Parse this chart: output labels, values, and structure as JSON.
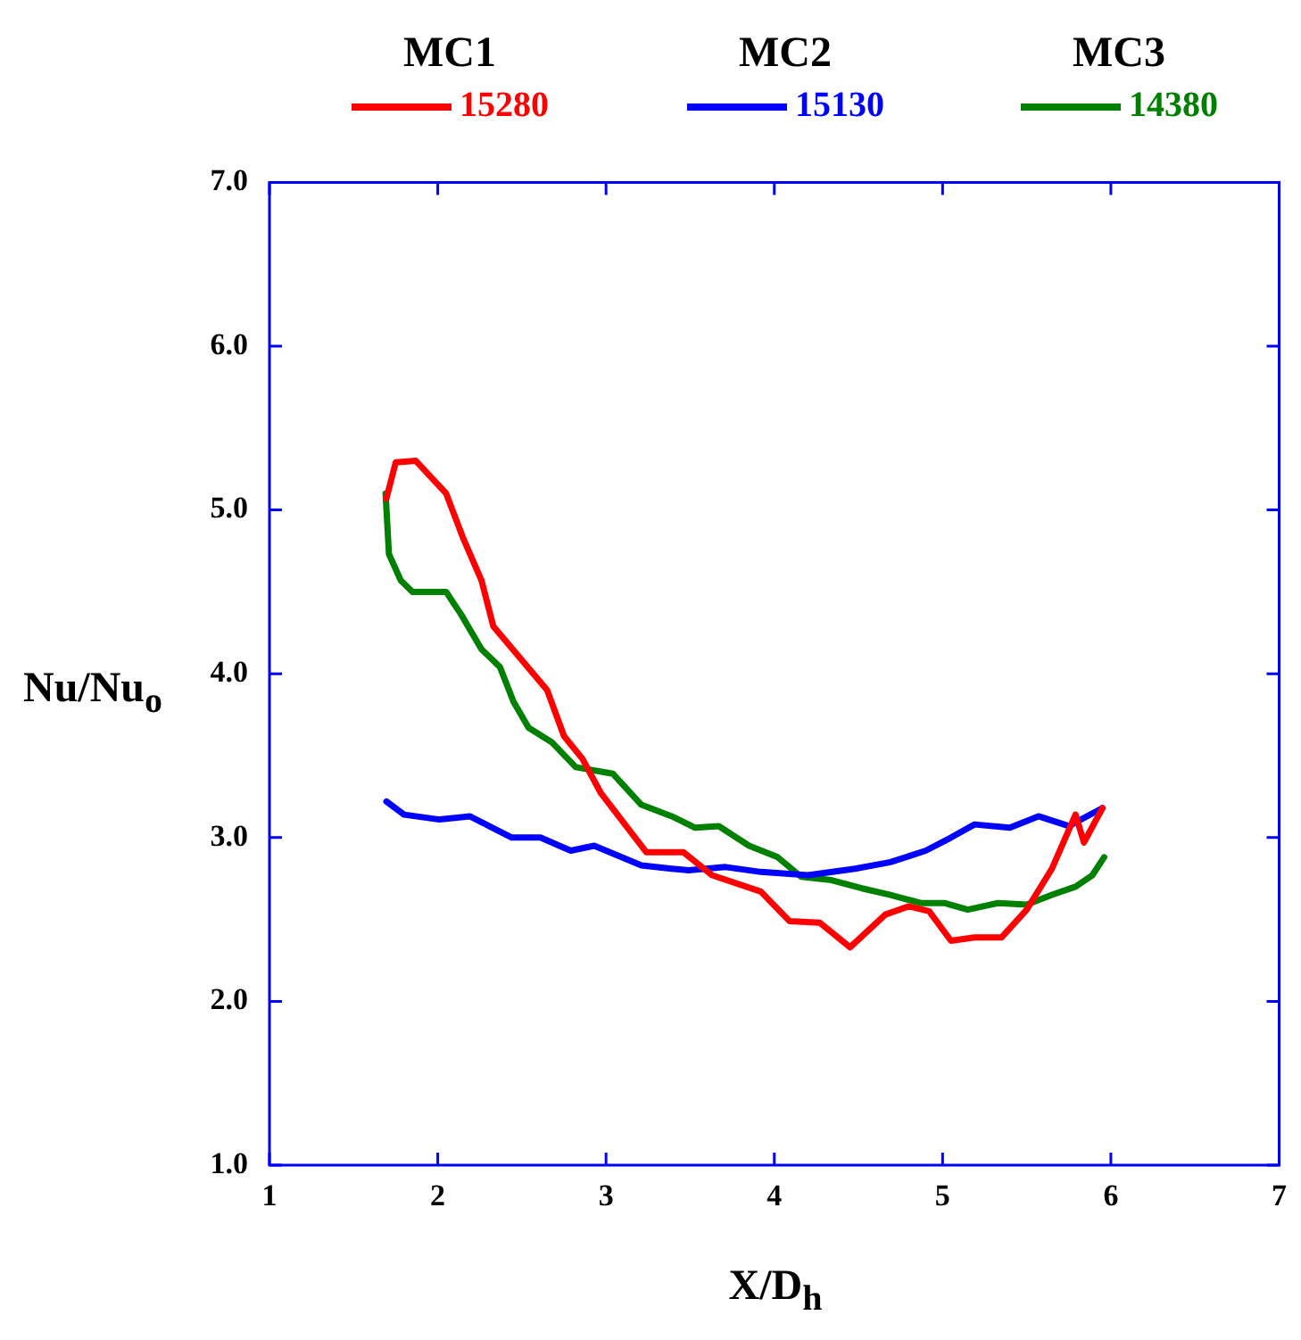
{
  "chart_data": {
    "type": "line",
    "xlabel": "X/D$_{h}$",
    "ylabel": "Nu/Nu$_{o}$",
    "annotations": [
      "MC1",
      "MC2",
      "MC3"
    ],
    "xlim": [
      1,
      7
    ],
    "ylim": [
      1,
      7
    ],
    "xticks": [
      1,
      2,
      3,
      4,
      5,
      6,
      7
    ],
    "yticks": [
      {
        "value": 1,
        "label": "1.0"
      },
      {
        "value": 2,
        "label": "2.0"
      },
      {
        "value": 3,
        "label": "3.0"
      },
      {
        "value": 4,
        "label": "4.0"
      },
      {
        "value": 5,
        "label": "5.0"
      },
      {
        "value": 6,
        "label": "6.0"
      },
      {
        "value": 7,
        "label": "7.0"
      }
    ],
    "grid": false,
    "legend": "top",
    "marker": "none",
    "line_style": "solid",
    "series": [
      {
        "name": "15280",
        "color": "#ff0000",
        "x": [
          1.695,
          1.75,
          1.87,
          2.05,
          2.15,
          2.26,
          2.33,
          2.47,
          2.65,
          2.75,
          2.86,
          2.97,
          3.24,
          3.46,
          3.63,
          3.92,
          4.09,
          4.27,
          4.45,
          4.66,
          4.8,
          4.92,
          5.05,
          5.19,
          5.35,
          5.5,
          5.65,
          5.79,
          5.84,
          5.95
        ],
        "values": [
          5.07,
          5.29,
          5.3,
          5.1,
          4.83,
          4.57,
          4.29,
          4.12,
          3.9,
          3.62,
          3.48,
          3.27,
          2.91,
          2.91,
          2.77,
          2.67,
          2.49,
          2.48,
          2.33,
          2.53,
          2.58,
          2.55,
          2.37,
          2.39,
          2.39,
          2.56,
          2.81,
          3.14,
          2.97,
          3.18
        ]
      },
      {
        "name": "15130",
        "color": "#0000ff",
        "x": [
          1.695,
          1.8,
          2.01,
          2.19,
          2.44,
          2.61,
          2.79,
          2.93,
          3.21,
          3.39,
          3.49,
          3.71,
          3.92,
          4.2,
          4.48,
          4.69,
          4.9,
          5.05,
          5.19,
          5.4,
          5.57,
          5.75,
          5.95
        ],
        "values": [
          3.22,
          3.14,
          3.11,
          3.13,
          3.0,
          3.0,
          2.92,
          2.95,
          2.83,
          2.81,
          2.8,
          2.82,
          2.79,
          2.77,
          2.81,
          2.85,
          2.92,
          3.0,
          3.08,
          3.06,
          3.13,
          3.07,
          3.18
        ]
      },
      {
        "name": "14380",
        "color": "#008000",
        "x": [
          1.69,
          1.71,
          1.78,
          1.85,
          2.05,
          2.14,
          2.26,
          2.37,
          2.45,
          2.54,
          2.68,
          2.82,
          3.04,
          3.21,
          3.39,
          3.53,
          3.67,
          3.85,
          4.02,
          4.16,
          4.34,
          4.52,
          4.69,
          4.87,
          5.01,
          5.15,
          5.33,
          5.5,
          5.65,
          5.79,
          5.89,
          5.96
        ],
        "values": [
          5.1,
          4.73,
          4.57,
          4.5,
          4.5,
          4.36,
          4.15,
          4.04,
          3.83,
          3.67,
          3.58,
          3.43,
          3.39,
          3.2,
          3.13,
          3.06,
          3.07,
          2.95,
          2.88,
          2.76,
          2.74,
          2.69,
          2.65,
          2.6,
          2.6,
          2.56,
          2.6,
          2.59,
          2.65,
          2.7,
          2.77,
          2.88
        ]
      }
    ]
  }
}
